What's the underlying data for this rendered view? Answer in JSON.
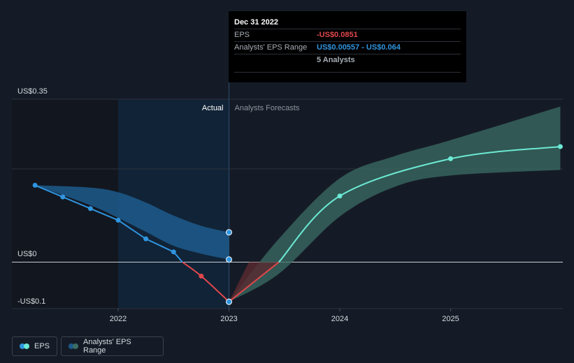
{
  "tooltip": {
    "date": "Dec 31 2022",
    "eps_label": "EPS",
    "eps_value": "-US$0.0851",
    "range_label": "Analysts' EPS Range",
    "range_value": "US$0.00557 - US$0.064",
    "analysts": "5 Analysts"
  },
  "legend": {
    "eps_label": "EPS",
    "range_label": "Analysts' EPS Range"
  },
  "colors": {
    "background": "#151b26",
    "eps_actual": "#2f95e0",
    "eps_negative": "#e0474c",
    "eps_forecast": "#6ce9d4",
    "range_forecast": "#3b6e64",
    "range_actual": "#1d5a8c"
  },
  "chart_data": {
    "type": "line",
    "section_labels": {
      "actual": "Actual",
      "forecast": "Analysts Forecasts"
    },
    "y_tick_labels": [
      "US$0.35",
      "US$0",
      "-US$0.1"
    ],
    "y_ticks": [
      0.35,
      0,
      -0.1
    ],
    "x_tick_labels": [
      "2022",
      "2023",
      "2024",
      "2025"
    ],
    "x_ticks": [
      2022,
      2023,
      2024,
      2025
    ],
    "xlim": [
      2021.05,
      2025.99
    ],
    "ylim": [
      -0.1,
      0.35
    ],
    "actual_boundary": 2023.0,
    "series": [
      {
        "name": "EPS",
        "points": [
          [
            2021.25,
            0.165
          ],
          [
            2021.5,
            0.14
          ],
          [
            2021.75,
            0.115
          ],
          [
            2022.0,
            0.09
          ],
          [
            2022.25,
            0.05
          ],
          [
            2022.5,
            0.022
          ],
          [
            2022.75,
            -0.03
          ],
          [
            2023.0,
            -0.0851
          ]
        ]
      },
      {
        "name": "EPS Forecast",
        "points": [
          [
            2023.0,
            -0.0851
          ],
          [
            2023.45,
            0.0
          ],
          [
            2024.0,
            0.142
          ],
          [
            2025.0,
            0.222
          ],
          [
            2025.99,
            0.248
          ]
        ]
      }
    ],
    "actual_range": {
      "x": [
        2021.25,
        2021.75,
        2022.0,
        2022.25,
        2022.5,
        2022.75,
        2023.0
      ],
      "high": [
        0.165,
        0.16,
        0.15,
        0.128,
        0.1,
        0.078,
        0.064
      ],
      "low": [
        0.165,
        0.122,
        0.095,
        0.065,
        0.035,
        0.018,
        0.00557
      ]
    },
    "forecast_range": {
      "x": [
        2023.0,
        2023.45,
        2024.0,
        2024.5,
        2025.0,
        2025.99
      ],
      "high": [
        -0.0851,
        0.05,
        0.18,
        0.228,
        0.262,
        0.334
      ],
      "low": [
        -0.0851,
        -0.025,
        0.098,
        0.162,
        0.186,
        0.198
      ]
    }
  }
}
